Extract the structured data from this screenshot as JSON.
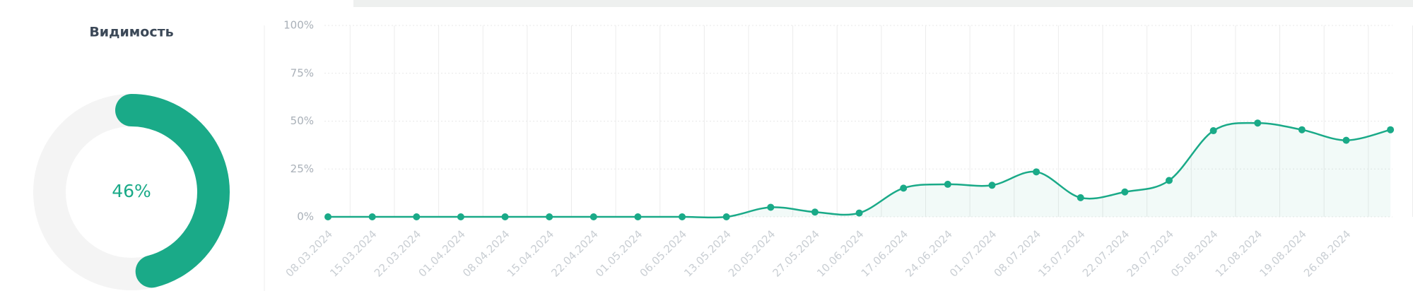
{
  "chart_data": [
    {
      "type": "donut",
      "title": "Видимость",
      "values": [
        46
      ],
      "value_labels": [
        "46%"
      ],
      "color": "#1aaa88",
      "track_color": "#f4f4f4"
    },
    {
      "type": "line",
      "categories": [
        "08.03.2024",
        "15.03.2024",
        "22.03.2024",
        "01.04.2024",
        "08.04.2024",
        "15.04.2024",
        "22.04.2024",
        "01.05.2024",
        "06.05.2024",
        "13.05.2024",
        "20.05.2024",
        "27.05.2024",
        "10.06.2024",
        "17.06.2024",
        "24.06.2024",
        "01.07.2024",
        "08.07.2024",
        "15.07.2024",
        "22.07.2024",
        "29.07.2024",
        "05.08.2024",
        "12.08.2024",
        "19.08.2024",
        "26.08.2024",
        null
      ],
      "series": [
        {
          "color": "#1aaa88",
          "values": [
            0,
            0,
            0,
            0,
            0,
            0,
            0,
            0,
            0,
            0,
            5,
            2.5,
            2,
            15,
            17,
            16.5,
            23.5,
            10,
            13,
            19,
            45,
            49,
            45.5,
            40,
            45.5
          ]
        }
      ],
      "ylim": [
        0,
        100
      ],
      "yticks": [
        {
          "value": 0,
          "label": "0%"
        },
        {
          "value": 25,
          "label": "25%"
        },
        {
          "value": 50,
          "label": "50%"
        },
        {
          "value": 75,
          "label": "75%"
        },
        {
          "value": 100,
          "label": "100%"
        }
      ],
      "grid": true,
      "area": true
    }
  ]
}
